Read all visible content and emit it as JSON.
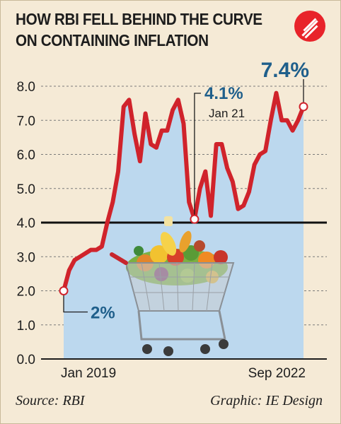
{
  "title_line1": "HOW RBI FELL BEHIND THE CURVE",
  "title_line2": "ON CONTAINING INFLATION",
  "source": "Source: RBI",
  "credit": "Graphic: IE Design",
  "logo_icon": "indian-express-logo-icon",
  "colors": {
    "line": "#d0232b",
    "area": "#bcd8ee",
    "threshold": "#111111",
    "accent_text": "#1f5f8b",
    "logo": "#e8232a"
  },
  "chart_data": {
    "type": "area",
    "x_tick_labels": [
      "Jan 2019",
      "Sep 2022"
    ],
    "y_ticks": [
      "0.0",
      "1.0",
      "2.0",
      "3.0",
      "4.0",
      "5.0",
      "6.0",
      "7.0",
      "8.0"
    ],
    "ylim": [
      0,
      8
    ],
    "grid": "dashed horizontal",
    "threshold": 4.0,
    "start_label": "Jan 2019",
    "end_label": "Sep 2022",
    "values": [
      2.0,
      2.6,
      2.9,
      3.0,
      3.1,
      3.2,
      3.2,
      3.3,
      4.0,
      4.6,
      5.5,
      7.4,
      7.6,
      6.6,
      5.8,
      7.2,
      6.3,
      6.2,
      6.7,
      6.7,
      7.3,
      7.6,
      6.9,
      4.6,
      4.1,
      5.0,
      5.5,
      4.2,
      6.3,
      6.3,
      5.6,
      5.2,
      4.4,
      4.5,
      4.9,
      5.7,
      6.0,
      6.1,
      7.0,
      7.8,
      7.0,
      7.0,
      6.7,
      7.0,
      7.4
    ],
    "annotations": [
      {
        "index": 0,
        "value_label": "2%"
      },
      {
        "index": 24,
        "value_label": "4.1%",
        "date_label": "Jan 21"
      },
      {
        "index": 44,
        "value_label": "7.4%"
      }
    ]
  }
}
